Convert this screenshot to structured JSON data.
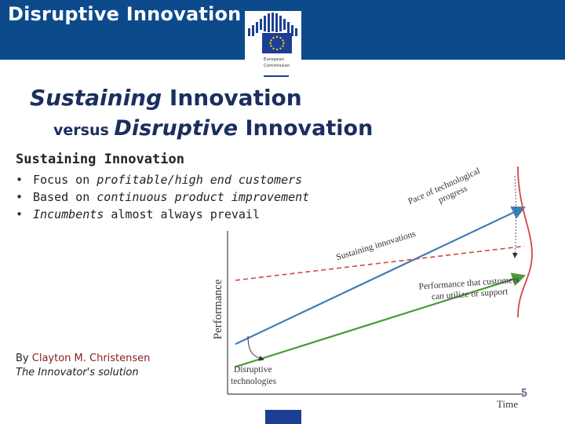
{
  "header": {
    "title": "Disruptive Innovation",
    "logo_line1": "European",
    "logo_line2": "Commission",
    "color": "#0d4a8c"
  },
  "headline": {
    "line1_emph": "Sustaining",
    "line1_rest": " Innovation",
    "line2_prefix": "versus ",
    "line2_emph": "Disruptive",
    "line2_rest": " Innovation"
  },
  "section": {
    "title": "Sustaining Innovation",
    "bullets": [
      {
        "pre": "Focus on ",
        "emph": "profitable/high end customers",
        "post": ""
      },
      {
        "pre": "Based on ",
        "emph": "continuous product improvement",
        "post": ""
      },
      {
        "pre": "",
        "emph": "Incumbents",
        "post": " almost always prevail"
      }
    ]
  },
  "chart_data": {
    "type": "line",
    "title": "",
    "xlabel": "Time",
    "ylabel": "Performance",
    "series": [
      {
        "name": "Sustaining innovations",
        "x": [
          0,
          10
        ],
        "y": [
          22,
          82
        ],
        "color": "#3f7fb5"
      },
      {
        "name": "Performance that customers can utilize or support",
        "x": [
          0,
          10
        ],
        "y": [
          50,
          65
        ],
        "color": "#d04848"
      },
      {
        "name": "Disruptive technologies",
        "x": [
          0,
          10
        ],
        "y": [
          12,
          52
        ],
        "color": "#4a9a3a"
      }
    ],
    "annotations": {
      "pace_line1": "Pace of technological",
      "pace_line2": "progress",
      "sustaining": "Sustaining innovations",
      "customers_line1": "Performance that customers",
      "customers_line2": "can utilize or support",
      "disruptive_line1": "Disruptive",
      "disruptive_line2": "technologies"
    }
  },
  "credit": {
    "prefix": "By ",
    "author": "Clayton M. Christensen",
    "book": "The Innovator's solution"
  },
  "page_number": "5"
}
